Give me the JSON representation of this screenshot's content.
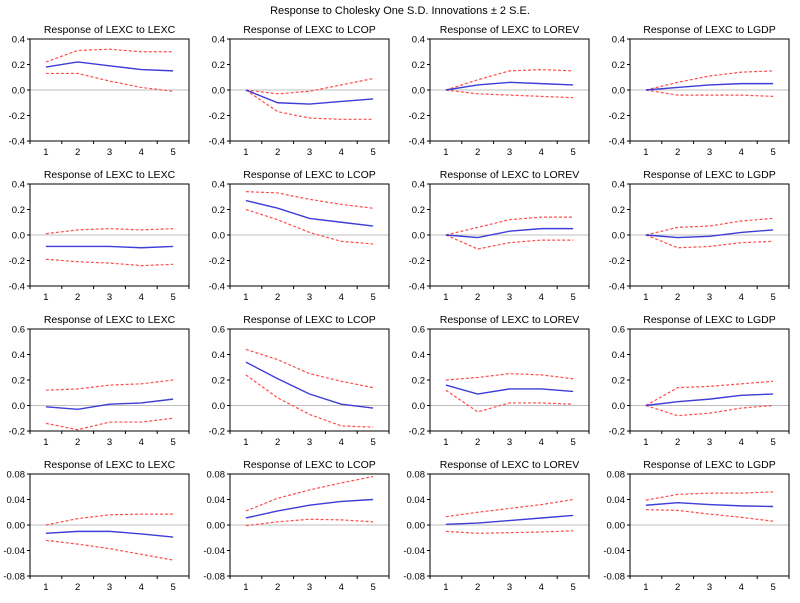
{
  "title": "Response to Cholesky One S.D. Innovations ± 2 S.E.",
  "colors": {
    "response_line": "#3d3dd8",
    "band_line": "#ff4d4d",
    "zero_line": "#bfbfbf",
    "axis": "#000000",
    "background": "#ffffff",
    "text": "#000000"
  },
  "layout": {
    "rows": 4,
    "cols": 4,
    "legend": "none",
    "grid": "off"
  },
  "chart_data": [
    {
      "type": "line",
      "title": "Response of LEXC to LEXC",
      "x": [
        1,
        2,
        3,
        4,
        5
      ],
      "xlim": [
        0.5,
        5.5
      ],
      "ylim": [
        -0.4,
        0.4
      ],
      "yticks": [
        "0.4",
        "0.2",
        "0.0",
        "-0.2",
        "-0.4"
      ],
      "xticks": [
        "1",
        "2",
        "3",
        "4",
        "5"
      ],
      "series": [
        {
          "name": "response",
          "style": "solid",
          "values": [
            0.18,
            0.22,
            0.19,
            0.16,
            0.15
          ]
        },
        {
          "name": "upper_2se",
          "style": "dashed",
          "values": [
            0.22,
            0.31,
            0.32,
            0.3,
            0.3
          ]
        },
        {
          "name": "lower_2se",
          "style": "dashed",
          "values": [
            0.13,
            0.13,
            0.07,
            0.02,
            -0.01
          ]
        }
      ]
    },
    {
      "type": "line",
      "title": "Response of LEXC to LCOP",
      "x": [
        1,
        2,
        3,
        4,
        5
      ],
      "xlim": [
        0.5,
        5.5
      ],
      "ylim": [
        -0.4,
        0.4
      ],
      "yticks": [
        "0.4",
        "0.2",
        "0.0",
        "-0.2",
        "-0.4"
      ],
      "xticks": [
        "1",
        "2",
        "3",
        "4",
        "5"
      ],
      "series": [
        {
          "name": "response",
          "style": "solid",
          "values": [
            0.0,
            -0.1,
            -0.11,
            -0.09,
            -0.07
          ]
        },
        {
          "name": "upper_2se",
          "style": "dashed",
          "values": [
            0.0,
            -0.03,
            -0.01,
            0.04,
            0.09
          ]
        },
        {
          "name": "lower_2se",
          "style": "dashed",
          "values": [
            0.0,
            -0.17,
            -0.22,
            -0.23,
            -0.23
          ]
        }
      ]
    },
    {
      "type": "line",
      "title": "Response of LEXC to LOREV",
      "x": [
        1,
        2,
        3,
        4,
        5
      ],
      "xlim": [
        0.5,
        5.5
      ],
      "ylim": [
        -0.4,
        0.4
      ],
      "yticks": [
        "0.4",
        "0.2",
        "0.0",
        "-0.2",
        "-0.4"
      ],
      "xticks": [
        "1",
        "2",
        "3",
        "4",
        "5"
      ],
      "series": [
        {
          "name": "response",
          "style": "solid",
          "values": [
            0.0,
            0.04,
            0.06,
            0.05,
            0.04
          ]
        },
        {
          "name": "upper_2se",
          "style": "dashed",
          "values": [
            0.0,
            0.08,
            0.15,
            0.16,
            0.15
          ]
        },
        {
          "name": "lower_2se",
          "style": "dashed",
          "values": [
            0.0,
            -0.03,
            -0.04,
            -0.05,
            -0.06
          ]
        }
      ]
    },
    {
      "type": "line",
      "title": "Response of LEXC to LGDP",
      "x": [
        1,
        2,
        3,
        4,
        5
      ],
      "xlim": [
        0.5,
        5.5
      ],
      "ylim": [
        -0.4,
        0.4
      ],
      "yticks": [
        "0.4",
        "0.2",
        "0.0",
        "-0.2",
        "-0.4"
      ],
      "xticks": [
        "1",
        "2",
        "3",
        "4",
        "5"
      ],
      "series": [
        {
          "name": "response",
          "style": "solid",
          "values": [
            0.0,
            0.02,
            0.04,
            0.05,
            0.05
          ]
        },
        {
          "name": "upper_2se",
          "style": "dashed",
          "values": [
            0.0,
            0.06,
            0.11,
            0.14,
            0.15
          ]
        },
        {
          "name": "lower_2se",
          "style": "dashed",
          "values": [
            0.0,
            -0.04,
            -0.04,
            -0.04,
            -0.05
          ]
        }
      ]
    },
    {
      "type": "line",
      "title": "Response of LEXC to LEXC",
      "x": [
        1,
        2,
        3,
        4,
        5
      ],
      "xlim": [
        0.5,
        5.5
      ],
      "ylim": [
        -0.4,
        0.4
      ],
      "yticks": [
        "0.4",
        "0.2",
        "0.0",
        "-0.2",
        "-0.4"
      ],
      "xticks": [
        "1",
        "2",
        "3",
        "4",
        "5"
      ],
      "series": [
        {
          "name": "response",
          "style": "solid",
          "values": [
            -0.09,
            -0.09,
            -0.09,
            -0.1,
            -0.09
          ]
        },
        {
          "name": "upper_2se",
          "style": "dashed",
          "values": [
            0.01,
            0.04,
            0.05,
            0.04,
            0.05
          ]
        },
        {
          "name": "lower_2se",
          "style": "dashed",
          "values": [
            -0.19,
            -0.21,
            -0.22,
            -0.24,
            -0.23
          ]
        }
      ]
    },
    {
      "type": "line",
      "title": "Response of LEXC to LCOP",
      "x": [
        1,
        2,
        3,
        4,
        5
      ],
      "xlim": [
        0.5,
        5.5
      ],
      "ylim": [
        -0.4,
        0.4
      ],
      "yticks": [
        "0.4",
        "0.2",
        "0.0",
        "-0.2",
        "-0.4"
      ],
      "xticks": [
        "1",
        "2",
        "3",
        "4",
        "5"
      ],
      "series": [
        {
          "name": "response",
          "style": "solid",
          "values": [
            0.27,
            0.21,
            0.13,
            0.1,
            0.07
          ]
        },
        {
          "name": "upper_2se",
          "style": "dashed",
          "values": [
            0.34,
            0.33,
            0.28,
            0.24,
            0.21
          ]
        },
        {
          "name": "lower_2se",
          "style": "dashed",
          "values": [
            0.2,
            0.12,
            0.02,
            -0.05,
            -0.07
          ]
        }
      ]
    },
    {
      "type": "line",
      "title": "Response of LEXC to LOREV",
      "x": [
        1,
        2,
        3,
        4,
        5
      ],
      "xlim": [
        0.5,
        5.5
      ],
      "ylim": [
        -0.4,
        0.4
      ],
      "yticks": [
        "0.4",
        "0.2",
        "0.0",
        "-0.2",
        "-0.4"
      ],
      "xticks": [
        "1",
        "2",
        "3",
        "4",
        "5"
      ],
      "series": [
        {
          "name": "response",
          "style": "solid",
          "values": [
            0.0,
            -0.02,
            0.03,
            0.05,
            0.05
          ]
        },
        {
          "name": "upper_2se",
          "style": "dashed",
          "values": [
            0.0,
            0.06,
            0.12,
            0.14,
            0.14
          ]
        },
        {
          "name": "lower_2se",
          "style": "dashed",
          "values": [
            0.0,
            -0.11,
            -0.06,
            -0.04,
            -0.04
          ]
        }
      ]
    },
    {
      "type": "line",
      "title": "Response of LEXC to LGDP",
      "x": [
        1,
        2,
        3,
        4,
        5
      ],
      "xlim": [
        0.5,
        5.5
      ],
      "ylim": [
        -0.4,
        0.4
      ],
      "yticks": [
        "0.4",
        "0.2",
        "0.0",
        "-0.2",
        "-0.4"
      ],
      "xticks": [
        "1",
        "2",
        "3",
        "4",
        "5"
      ],
      "series": [
        {
          "name": "response",
          "style": "solid",
          "values": [
            0.0,
            -0.02,
            -0.01,
            0.02,
            0.04
          ]
        },
        {
          "name": "upper_2se",
          "style": "dashed",
          "values": [
            0.0,
            0.06,
            0.07,
            0.11,
            0.13
          ]
        },
        {
          "name": "lower_2se",
          "style": "dashed",
          "values": [
            0.0,
            -0.1,
            -0.09,
            -0.06,
            -0.05
          ]
        }
      ]
    },
    {
      "type": "line",
      "title": "Response of LEXC to LEXC",
      "x": [
        1,
        2,
        3,
        4,
        5
      ],
      "xlim": [
        0.5,
        5.5
      ],
      "ylim": [
        -0.2,
        0.6
      ],
      "yticks": [
        "0.6",
        "0.4",
        "0.2",
        "0.0",
        "-0.2"
      ],
      "xticks": [
        "1",
        "2",
        "3",
        "4",
        "5"
      ],
      "series": [
        {
          "name": "response",
          "style": "solid",
          "values": [
            -0.01,
            -0.03,
            0.01,
            0.02,
            0.05
          ]
        },
        {
          "name": "upper_2se",
          "style": "dashed",
          "values": [
            0.12,
            0.13,
            0.16,
            0.17,
            0.2
          ]
        },
        {
          "name": "lower_2se",
          "style": "dashed",
          "values": [
            -0.14,
            -0.19,
            -0.13,
            -0.13,
            -0.1
          ]
        }
      ]
    },
    {
      "type": "line",
      "title": "Response of LEXC to LCOP",
      "x": [
        1,
        2,
        3,
        4,
        5
      ],
      "xlim": [
        0.5,
        5.5
      ],
      "ylim": [
        -0.2,
        0.6
      ],
      "yticks": [
        "0.6",
        "0.4",
        "0.2",
        "0.0",
        "-0.2"
      ],
      "xticks": [
        "1",
        "2",
        "3",
        "4",
        "5"
      ],
      "series": [
        {
          "name": "response",
          "style": "solid",
          "values": [
            0.34,
            0.21,
            0.09,
            0.01,
            -0.02
          ]
        },
        {
          "name": "upper_2se",
          "style": "dashed",
          "values": [
            0.44,
            0.36,
            0.25,
            0.19,
            0.14
          ]
        },
        {
          "name": "lower_2se",
          "style": "dashed",
          "values": [
            0.24,
            0.06,
            -0.07,
            -0.16,
            -0.17
          ]
        }
      ]
    },
    {
      "type": "line",
      "title": "Response of LEXC to LOREV",
      "x": [
        1,
        2,
        3,
        4,
        5
      ],
      "xlim": [
        0.5,
        5.5
      ],
      "ylim": [
        -0.2,
        0.6
      ],
      "yticks": [
        "0.6",
        "0.4",
        "0.2",
        "0.0",
        "-0.2"
      ],
      "xticks": [
        "1",
        "2",
        "3",
        "4",
        "5"
      ],
      "series": [
        {
          "name": "response",
          "style": "solid",
          "values": [
            0.16,
            0.09,
            0.13,
            0.13,
            0.11
          ]
        },
        {
          "name": "upper_2se",
          "style": "dashed",
          "values": [
            0.2,
            0.22,
            0.25,
            0.24,
            0.21
          ]
        },
        {
          "name": "lower_2se",
          "style": "dashed",
          "values": [
            0.12,
            -0.05,
            0.02,
            0.02,
            0.01
          ]
        }
      ]
    },
    {
      "type": "line",
      "title": "Response of LEXC to LGDP",
      "x": [
        1,
        2,
        3,
        4,
        5
      ],
      "xlim": [
        0.5,
        5.5
      ],
      "ylim": [
        -0.2,
        0.6
      ],
      "yticks": [
        "0.6",
        "0.4",
        "0.2",
        "0.0",
        "-0.2"
      ],
      "xticks": [
        "1",
        "2",
        "3",
        "4",
        "5"
      ],
      "series": [
        {
          "name": "response",
          "style": "solid",
          "values": [
            0.0,
            0.03,
            0.05,
            0.08,
            0.09
          ]
        },
        {
          "name": "upper_2se",
          "style": "dashed",
          "values": [
            0.0,
            0.14,
            0.15,
            0.17,
            0.19
          ]
        },
        {
          "name": "lower_2se",
          "style": "dashed",
          "values": [
            0.0,
            -0.08,
            -0.06,
            -0.02,
            0.0
          ]
        }
      ]
    },
    {
      "type": "line",
      "title": "Response of LEXC to LEXC",
      "x": [
        1,
        2,
        3,
        4,
        5
      ],
      "xlim": [
        0.5,
        5.5
      ],
      "ylim": [
        -0.08,
        0.08
      ],
      "yticks": [
        "0.08",
        "0.04",
        "0.00",
        "-0.04",
        "-0.08"
      ],
      "xticks": [
        "1",
        "2",
        "3",
        "4",
        "5"
      ],
      "series": [
        {
          "name": "response",
          "style": "solid",
          "values": [
            -0.013,
            -0.01,
            -0.01,
            -0.014,
            -0.019
          ]
        },
        {
          "name": "upper_2se",
          "style": "dashed",
          "values": [
            0.0,
            0.01,
            0.016,
            0.017,
            0.017
          ]
        },
        {
          "name": "lower_2se",
          "style": "dashed",
          "values": [
            -0.024,
            -0.03,
            -0.037,
            -0.046,
            -0.055
          ]
        }
      ]
    },
    {
      "type": "line",
      "title": "Response of LEXC to LCOP",
      "x": [
        1,
        2,
        3,
        4,
        5
      ],
      "xlim": [
        0.5,
        5.5
      ],
      "ylim": [
        -0.08,
        0.08
      ],
      "yticks": [
        "0.08",
        "0.04",
        "0.00",
        "-0.04",
        "-0.08"
      ],
      "xticks": [
        "1",
        "2",
        "3",
        "4",
        "5"
      ],
      "series": [
        {
          "name": "response",
          "style": "solid",
          "values": [
            0.011,
            0.022,
            0.031,
            0.037,
            0.04
          ]
        },
        {
          "name": "upper_2se",
          "style": "dashed",
          "values": [
            0.022,
            0.042,
            0.055,
            0.066,
            0.076
          ]
        },
        {
          "name": "lower_2se",
          "style": "dashed",
          "values": [
            -0.001,
            0.005,
            0.009,
            0.008,
            0.005
          ]
        }
      ]
    },
    {
      "type": "line",
      "title": "Response of LEXC to LOREV",
      "x": [
        1,
        2,
        3,
        4,
        5
      ],
      "xlim": [
        0.5,
        5.5
      ],
      "ylim": [
        -0.08,
        0.08
      ],
      "yticks": [
        "0.08",
        "0.04",
        "0.00",
        "-0.04",
        "-0.08"
      ],
      "xticks": [
        "1",
        "2",
        "3",
        "4",
        "5"
      ],
      "series": [
        {
          "name": "response",
          "style": "solid",
          "values": [
            0.001,
            0.003,
            0.007,
            0.011,
            0.015
          ]
        },
        {
          "name": "upper_2se",
          "style": "dashed",
          "values": [
            0.013,
            0.02,
            0.026,
            0.032,
            0.04
          ]
        },
        {
          "name": "lower_2se",
          "style": "dashed",
          "values": [
            -0.01,
            -0.013,
            -0.012,
            -0.011,
            -0.009
          ]
        }
      ]
    },
    {
      "type": "line",
      "title": "Response of LEXC to LGDP",
      "x": [
        1,
        2,
        3,
        4,
        5
      ],
      "xlim": [
        0.5,
        5.5
      ],
      "ylim": [
        -0.08,
        0.08
      ],
      "yticks": [
        "0.08",
        "0.04",
        "0.00",
        "-0.04",
        "-0.08"
      ],
      "xticks": [
        "1",
        "2",
        "3",
        "4",
        "5"
      ],
      "series": [
        {
          "name": "response",
          "style": "solid",
          "values": [
            0.031,
            0.035,
            0.032,
            0.03,
            0.029
          ]
        },
        {
          "name": "upper_2se",
          "style": "dashed",
          "values": [
            0.039,
            0.048,
            0.05,
            0.05,
            0.052
          ]
        },
        {
          "name": "lower_2se",
          "style": "dashed",
          "values": [
            0.024,
            0.023,
            0.017,
            0.012,
            0.006
          ]
        }
      ]
    }
  ]
}
